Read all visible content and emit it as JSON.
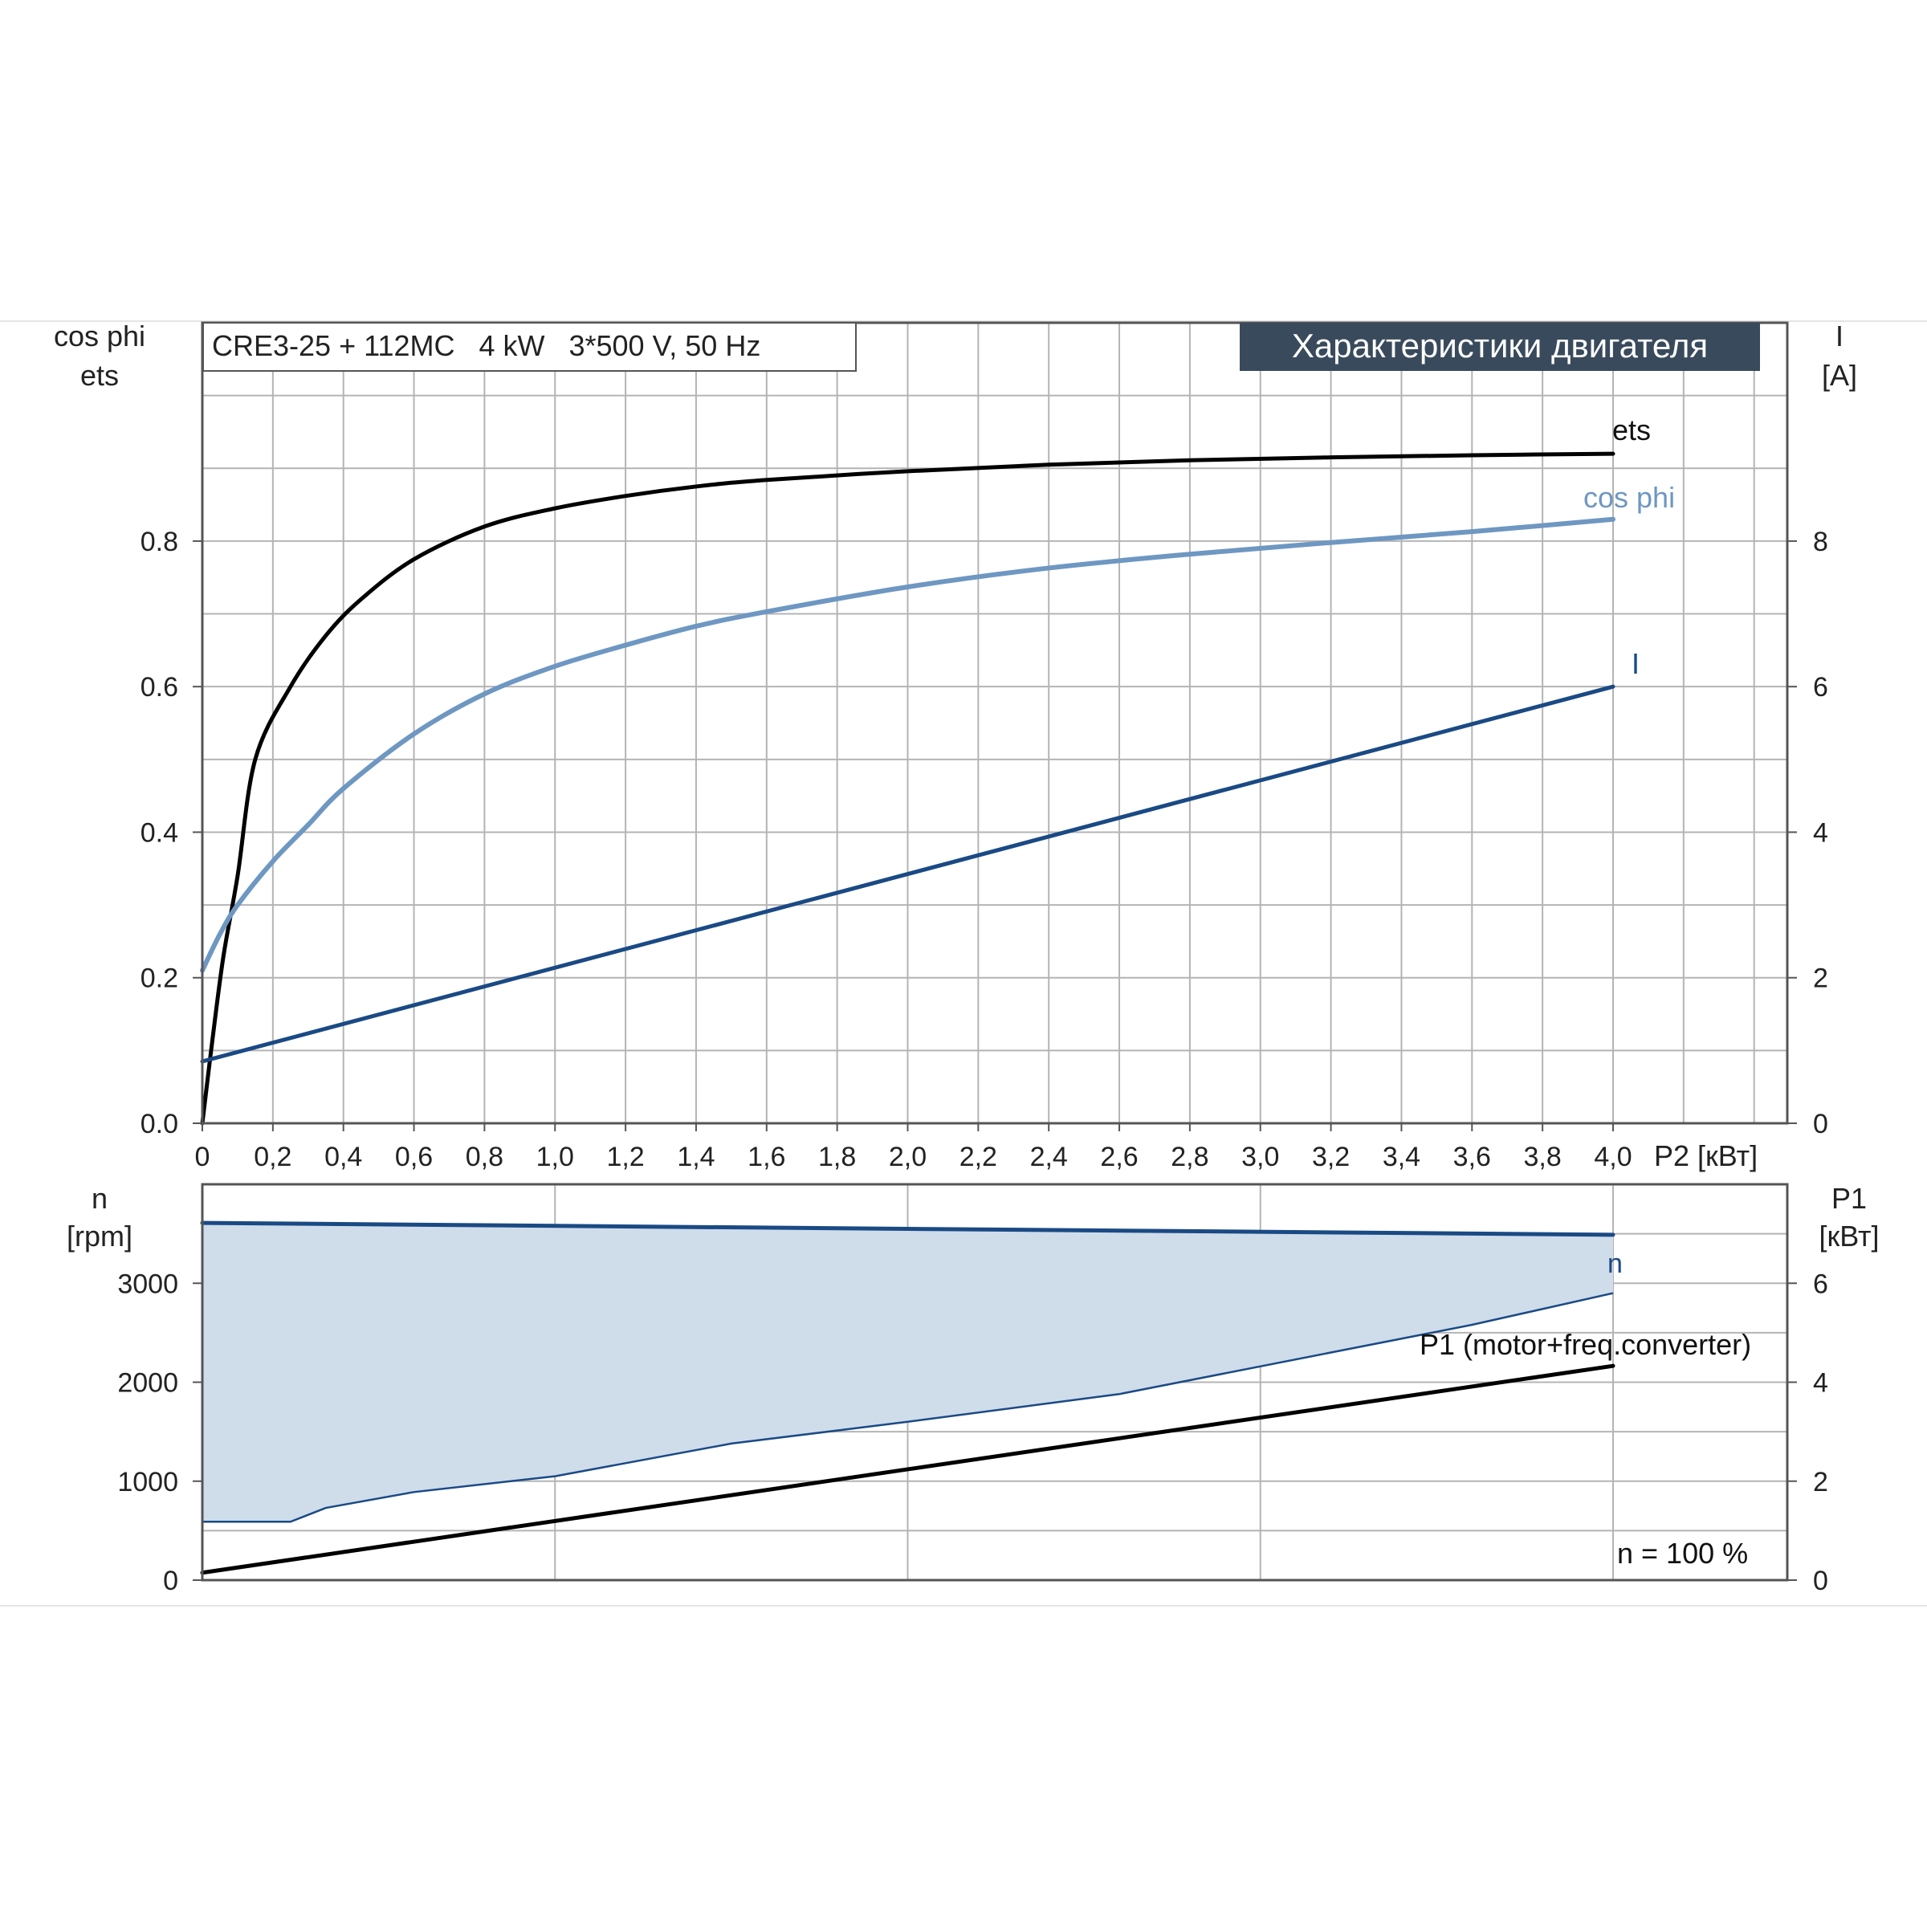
{
  "chart_data": [
    {
      "type": "line",
      "title": "Характеристики двигателя",
      "info_box": "CRE3-25 + 112MC   4 kW   3*500 V, 50 Hz",
      "left_axis_label": [
        "cos phi",
        "ets"
      ],
      "right_axis_label": [
        "I",
        "[A]"
      ],
      "xlabel": "P2 [кВт]",
      "x_ticks": [
        "0",
        "0,2",
        "0,4",
        "0,6",
        "0,8",
        "1,0",
        "1,2",
        "1,4",
        "1,6",
        "1,8",
        "2,0",
        "2,2",
        "2,4",
        "2,6",
        "2,8",
        "3,0",
        "3,2",
        "3,4",
        "3,6",
        "3,8",
        "4,0"
      ],
      "xlim": [
        0,
        4.5
      ],
      "ylim_left": [
        0,
        1.1
      ],
      "y_ticks_left": [
        "0.0",
        "0.2",
        "0.4",
        "0.6",
        "0.8"
      ],
      "ylim_right": [
        0,
        11
      ],
      "y_ticks_right": [
        "0",
        "2",
        "4",
        "6",
        "8"
      ],
      "grid": true,
      "series": [
        {
          "name": "ets",
          "axis": "left",
          "color": "#000000",
          "x": [
            0,
            0.03,
            0.06,
            0.1,
            0.15,
            0.25,
            0.35,
            0.45,
            0.6,
            0.8,
            1.0,
            1.2,
            1.4,
            1.6,
            2.0,
            2.4,
            2.8,
            3.2,
            3.6,
            4.0
          ],
          "y": [
            0.0,
            0.12,
            0.23,
            0.34,
            0.5,
            0.6,
            0.67,
            0.72,
            0.775,
            0.82,
            0.845,
            0.862,
            0.875,
            0.884,
            0.896,
            0.905,
            0.911,
            0.915,
            0.918,
            0.92
          ]
        },
        {
          "name": "cos phi",
          "axis": "left",
          "color": "#6e97c2",
          "x": [
            0,
            0.05,
            0.1,
            0.2,
            0.3,
            0.4,
            0.6,
            0.8,
            1.0,
            1.2,
            1.4,
            1.6,
            2.0,
            2.4,
            2.8,
            3.2,
            3.6,
            4.0
          ],
          "y": [
            0.21,
            0.26,
            0.3,
            0.36,
            0.41,
            0.46,
            0.535,
            0.59,
            0.628,
            0.657,
            0.683,
            0.703,
            0.737,
            0.763,
            0.782,
            0.798,
            0.813,
            0.83
          ]
        },
        {
          "name": "I",
          "axis": "right",
          "color": "#1a4a84",
          "x": [
            0,
            4.0
          ],
          "y": [
            0.85,
            6.0
          ]
        }
      ]
    },
    {
      "type": "area",
      "left_axis_label": [
        "n",
        "[rpm]"
      ],
      "right_axis_label": [
        "P1",
        "[кВт]"
      ],
      "annotation": "n = 100 %",
      "xlim": [
        0,
        4.5
      ],
      "ylim_left": [
        0,
        4000
      ],
      "y_ticks_left": [
        "0",
        "1000",
        "2000",
        "3000"
      ],
      "ylim_right": [
        0,
        8
      ],
      "y_ticks_right": [
        "0",
        "2",
        "4",
        "6"
      ],
      "grid": true,
      "band": {
        "color": "#cfdcea",
        "upper": {
          "x": [
            0,
            4.0
          ],
          "y": [
            3610,
            3490
          ]
        },
        "lower": {
          "x": [
            0,
            0.25,
            0.35,
            0.6,
            1.0,
            1.5,
            2.0,
            2.6,
            2.7,
            3.2,
            3.6,
            4.0
          ],
          "y": [
            590,
            590,
            730,
            890,
            1050,
            1380,
            1600,
            1880,
            1950,
            2300,
            2580,
            2900
          ]
        }
      },
      "series": [
        {
          "name": "n",
          "axis": "left",
          "color": "#1a4a84",
          "x": [
            0,
            4.0
          ],
          "y": [
            3610,
            3490
          ]
        },
        {
          "name": "P1 (motor+freq.converter)",
          "axis": "right",
          "color": "#000000",
          "x": [
            0,
            4.0
          ],
          "y": [
            0.15,
            4.33
          ]
        }
      ]
    }
  ]
}
